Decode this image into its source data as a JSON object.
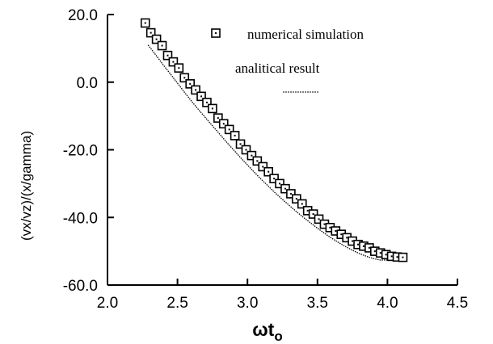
{
  "chart_data": {
    "type": "line",
    "title": "",
    "xlabel": "ωt",
    "xlabel_subscript": "o",
    "ylabel": "(vx/vz)/(x/gamma)",
    "xlim": [
      2.0,
      4.5
    ],
    "ylim": [
      -60.0,
      20.0
    ],
    "xticks": [
      2.0,
      2.5,
      3.0,
      3.5,
      4.0,
      4.5
    ],
    "yticks": [
      -60.0,
      -40.0,
      -20.0,
      0.0,
      20.0
    ],
    "xtick_labels": [
      "2.0",
      "2.5",
      "3.0",
      "3.5",
      "4.0",
      "4.5"
    ],
    "ytick_labels": [
      "-60.0",
      "-40.0",
      "-20.0",
      "0.0",
      "20.0"
    ],
    "grid": false,
    "legend_position": "top-right",
    "series": [
      {
        "name": "numerical simulation",
        "style": "open-square-markers",
        "color": "#000000",
        "x": [
          2.27,
          2.31,
          2.35,
          2.39,
          2.43,
          2.47,
          2.51,
          2.55,
          2.59,
          2.63,
          2.67,
          2.71,
          2.75,
          2.79,
          2.83,
          2.87,
          2.91,
          2.95,
          2.99,
          3.03,
          3.07,
          3.11,
          3.15,
          3.19,
          3.23,
          3.27,
          3.31,
          3.35,
          3.39,
          3.43,
          3.47,
          3.51,
          3.55,
          3.59,
          3.63,
          3.67,
          3.71,
          3.75,
          3.79,
          3.83,
          3.87,
          3.91,
          3.95,
          3.99,
          4.03,
          4.07,
          4.11
        ],
        "y": [
          17.5,
          14.6,
          12.7,
          10.8,
          7.9,
          6.0,
          4.2,
          1.3,
          -0.5,
          -2.3,
          -4.2,
          -6.0,
          -7.8,
          -10.6,
          -12.3,
          -14.0,
          -15.8,
          -18.3,
          -20.0,
          -21.7,
          -23.3,
          -25.0,
          -26.5,
          -28.5,
          -30.0,
          -31.5,
          -33.0,
          -34.5,
          -36.0,
          -38.0,
          -39.0,
          -40.5,
          -42.0,
          -43.0,
          -44.0,
          -45.0,
          -46.0,
          -47.0,
          -48.0,
          -48.5,
          -49.0,
          -50.0,
          -50.5,
          -51.0,
          -51.5,
          -51.7,
          -51.8
        ]
      },
      {
        "name": "analitical result",
        "style": "dotted-line",
        "color": "#000000",
        "x": [
          2.29,
          2.35,
          2.4,
          2.45,
          2.5,
          2.55,
          2.6,
          2.65,
          2.7,
          2.75,
          2.8,
          2.85,
          2.9,
          2.95,
          3.0,
          3.05,
          3.1,
          3.15,
          3.2,
          3.25,
          3.3,
          3.35,
          3.4,
          3.45,
          3.5,
          3.55,
          3.6,
          3.65,
          3.7,
          3.75,
          3.8,
          3.85,
          3.9,
          3.95,
          4.0,
          4.05,
          4.1
        ],
        "y": [
          11.0,
          7.8,
          5.0,
          2.4,
          -0.3,
          -3.0,
          -5.6,
          -8.1,
          -10.5,
          -12.9,
          -15.3,
          -17.7,
          -20.0,
          -22.3,
          -24.5,
          -26.7,
          -28.8,
          -30.8,
          -32.8,
          -34.7,
          -36.5,
          -38.3,
          -40.0,
          -41.6,
          -43.2,
          -44.7,
          -46.1,
          -47.4,
          -48.6,
          -49.7,
          -50.7,
          -51.5,
          -52.2,
          -52.6,
          -52.6,
          -52.3,
          -51.8
        ]
      }
    ]
  }
}
